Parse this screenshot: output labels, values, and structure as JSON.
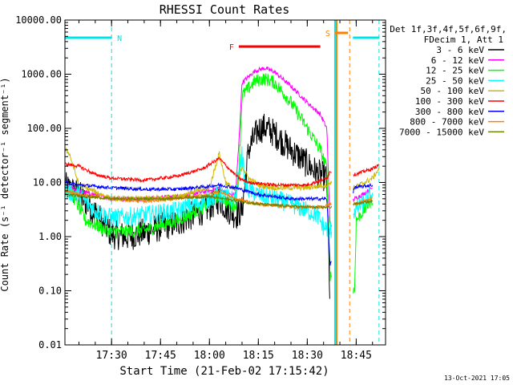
{
  "chart_data": {
    "type": "line",
    "title": "RHESSI Count Rates",
    "xlabel": "Start Time (21-Feb-02 17:15:42)",
    "ylabel": "Count Rate (s⁻¹ detector⁻¹ segment⁻¹)",
    "y_scale": "log",
    "ylim": [
      0.01,
      10000
    ],
    "xlim": [
      "17:15:42",
      "18:54:00"
    ],
    "grid": false,
    "x_ticks": [
      "17:30",
      "17:45",
      "18:00",
      "18:15",
      "18:30",
      "18:45"
    ],
    "y_ticks": [
      "0.01",
      "0.10",
      "1.00",
      "10.00",
      "100.00",
      "1000.00",
      "10000.00"
    ],
    "legend": {
      "placement": "right",
      "header": [
        "Det 1f,3f,4f,5f,6f,9f,",
        "FDecim 1, Att 1"
      ]
    },
    "footer_date": "13-Oct-2021 17:05",
    "flags": [
      {
        "label": "N",
        "color": "#00e5e5",
        "from": "17:15:42",
        "to": "17:30:00"
      },
      {
        "label": "F",
        "color": "#ff0000",
        "from": "18:09:00",
        "to": "18:34:00"
      },
      {
        "label": "S",
        "color": "#ff8000",
        "from": "18:38:30",
        "to": "18:42:30"
      },
      {
        "label": "",
        "color": "#00e5e5",
        "from": "18:44:00",
        "to": "18:52:00"
      }
    ],
    "markers": [
      {
        "time": "17:30:00",
        "color": "#00e5e5",
        "style": "dashed"
      },
      {
        "time": "18:38:30",
        "color": "#00e5e5",
        "style": "solid"
      },
      {
        "time": "18:39:00",
        "color": "#ff8000",
        "style": "solid"
      },
      {
        "time": "18:43:00",
        "color": "#ff8000",
        "style": "dashed"
      },
      {
        "time": "18:52:00",
        "color": "#00e5e5",
        "style": "dashed"
      }
    ],
    "series": [
      {
        "name": "3 - 6 keV",
        "color": "#000000",
        "noise": 0.55,
        "points": [
          [
            "17:15:42",
            8.5
          ],
          [
            "17:20",
            6
          ],
          [
            "17:25",
            2.8
          ],
          [
            "17:30",
            1.1
          ],
          [
            "17:35",
            1.0
          ],
          [
            "17:40",
            1.2
          ],
          [
            "17:45",
            1.5
          ],
          [
            "17:50",
            1.8
          ],
          [
            "17:55",
            2.5
          ],
          [
            "18:00",
            3.5
          ],
          [
            "18:03",
            5
          ],
          [
            "18:05",
            3.5
          ],
          [
            "18:08",
            2.5
          ],
          [
            "18:10",
            3
          ],
          [
            "18:12",
            40
          ],
          [
            "18:15",
            95
          ],
          [
            "18:17",
            105
          ],
          [
            "18:20",
            80
          ],
          [
            "18:25",
            40
          ],
          [
            "18:30",
            22
          ],
          [
            "18:33",
            15
          ],
          [
            "18:36",
            12
          ],
          [
            "18:37",
            0.05
          ]
        ]
      },
      {
        "name": "6 - 12 keV",
        "color": "#ff00ff",
        "noise": 0.08,
        "points": [
          [
            "17:15:42",
            9
          ],
          [
            "17:20",
            7
          ],
          [
            "17:30",
            5
          ],
          [
            "17:40",
            5
          ],
          [
            "17:50",
            5.5
          ],
          [
            "18:00",
            7
          ],
          [
            "18:03",
            8
          ],
          [
            "18:06",
            6
          ],
          [
            "18:08",
            6
          ],
          [
            "18:09",
            50
          ],
          [
            "18:10",
            700
          ],
          [
            "18:14",
            1150
          ],
          [
            "18:17",
            1300
          ],
          [
            "18:20",
            1100
          ],
          [
            "18:25",
            600
          ],
          [
            "18:30",
            300
          ],
          [
            "18:34",
            180
          ],
          [
            "18:36",
            100
          ],
          [
            "18:37",
            1.5
          ],
          [
            "18:44:30",
            5
          ],
          [
            "18:47",
            6
          ],
          [
            "18:50",
            8
          ]
        ]
      },
      {
        "name": "12 - 25 keV",
        "color": "#00ff00",
        "noise": 0.25,
        "points": [
          [
            "17:15:42",
            7.5
          ],
          [
            "17:18",
            6
          ],
          [
            "17:22",
            2
          ],
          [
            "17:30",
            1.2
          ],
          [
            "17:40",
            1.3
          ],
          [
            "17:50",
            2
          ],
          [
            "17:55",
            2.8
          ],
          [
            "18:00",
            4
          ],
          [
            "18:03",
            6
          ],
          [
            "18:06",
            4
          ],
          [
            "18:08",
            3.5
          ],
          [
            "18:09",
            15
          ],
          [
            "18:10",
            400
          ],
          [
            "18:14",
            750
          ],
          [
            "18:17",
            820
          ],
          [
            "18:20",
            700
          ],
          [
            "18:25",
            300
          ],
          [
            "18:30",
            100
          ],
          [
            "18:34",
            40
          ],
          [
            "18:36",
            18
          ],
          [
            "18:37",
            0.2
          ],
          [
            "18:44:30",
            0.1
          ],
          [
            "18:45",
            2
          ],
          [
            "18:50",
            5
          ]
        ]
      },
      {
        "name": "25 - 50 keV",
        "color": "#00ffff",
        "noise": 0.35,
        "points": [
          [
            "17:15:42",
            7
          ],
          [
            "17:20",
            6
          ],
          [
            "17:25",
            3
          ],
          [
            "17:30",
            2.2
          ],
          [
            "17:40",
            2.5
          ],
          [
            "17:50",
            3
          ],
          [
            "18:00",
            5
          ],
          [
            "18:03",
            6
          ],
          [
            "18:06",
            5
          ],
          [
            "18:08",
            5
          ],
          [
            "18:10",
            35
          ],
          [
            "18:11",
            8
          ],
          [
            "18:15",
            6
          ],
          [
            "18:20",
            5
          ],
          [
            "18:25",
            4
          ],
          [
            "18:30",
            3
          ],
          [
            "18:33",
            2.5
          ],
          [
            "18:35",
            1.5
          ],
          [
            "18:37",
            1.3
          ],
          [
            "18:44:30",
            3
          ],
          [
            "18:50",
            6
          ]
        ]
      },
      {
        "name": "50 - 100 keV",
        "color": "#ccbb00",
        "noise": 0.1,
        "points": [
          [
            "17:15:42",
            40
          ],
          [
            "17:17",
            35
          ],
          [
            "17:20",
            9
          ],
          [
            "17:30",
            5
          ],
          [
            "17:40",
            5
          ],
          [
            "17:50",
            5.5
          ],
          [
            "18:00",
            8
          ],
          [
            "18:03",
            35
          ],
          [
            "18:05",
            10
          ],
          [
            "18:08",
            7
          ],
          [
            "18:10",
            20
          ],
          [
            "18:12",
            12
          ],
          [
            "18:15",
            9
          ],
          [
            "18:20",
            8
          ],
          [
            "18:30",
            8
          ],
          [
            "18:36",
            9
          ],
          [
            "18:37",
            10
          ],
          [
            "18:44:30",
            8
          ],
          [
            "18:50",
            12
          ],
          [
            "18:52",
            18
          ]
        ]
      },
      {
        "name": "100 - 300 keV",
        "color": "#ff0000",
        "noise": 0.06,
        "points": [
          [
            "17:15:42",
            22
          ],
          [
            "17:20",
            20
          ],
          [
            "17:25",
            14
          ],
          [
            "17:30",
            12
          ],
          [
            "17:40",
            11
          ],
          [
            "17:50",
            13
          ],
          [
            "17:58",
            18
          ],
          [
            "18:03",
            28
          ],
          [
            "18:06",
            18
          ],
          [
            "18:09",
            12
          ],
          [
            "18:12",
            10
          ],
          [
            "18:20",
            9
          ],
          [
            "18:30",
            9
          ],
          [
            "18:36",
            12
          ],
          [
            "18:37",
            16
          ],
          [
            "18:44:30",
            14
          ],
          [
            "18:50",
            18
          ],
          [
            "18:52",
            21
          ]
        ]
      },
      {
        "name": "300 - 800 keV",
        "color": "#0000ff",
        "noise": 0.06,
        "points": [
          [
            "17:15:42",
            10
          ],
          [
            "17:20",
            9
          ],
          [
            "17:30",
            8
          ],
          [
            "17:40",
            7.5
          ],
          [
            "17:50",
            7.5
          ],
          [
            "18:00",
            8.5
          ],
          [
            "18:03",
            9
          ],
          [
            "18:08",
            8
          ],
          [
            "18:15",
            6
          ],
          [
            "18:25",
            5
          ],
          [
            "18:34",
            5
          ],
          [
            "18:36",
            5
          ],
          [
            "18:37",
            0.3
          ],
          [
            "18:44:30",
            8
          ],
          [
            "18:50",
            9
          ]
        ]
      },
      {
        "name": "800 - 7000 keV",
        "color": "#ff8000",
        "noise": 0.06,
        "points": [
          [
            "17:15:42",
            7
          ],
          [
            "17:20",
            6
          ],
          [
            "17:30",
            5
          ],
          [
            "17:40",
            4.5
          ],
          [
            "17:50",
            5
          ],
          [
            "18:00",
            6
          ],
          [
            "18:03",
            7
          ],
          [
            "18:08",
            5
          ],
          [
            "18:15",
            4
          ],
          [
            "18:25",
            3.5
          ],
          [
            "18:35",
            3.5
          ],
          [
            "18:37",
            4
          ],
          [
            "18:44:30",
            4
          ],
          [
            "18:50",
            5
          ]
        ]
      },
      {
        "name": "7000 - 15000 keV",
        "color": "#708000",
        "noise": 0.05,
        "points": [
          [
            "17:15:42",
            6
          ],
          [
            "17:30",
            5
          ],
          [
            "17:45",
            5
          ],
          [
            "18:00",
            5.5
          ],
          [
            "18:15",
            4
          ],
          [
            "18:30",
            3.5
          ],
          [
            "18:37",
            3.5
          ],
          [
            "18:44:30",
            4
          ],
          [
            "18:50",
            4.5
          ]
        ]
      }
    ]
  }
}
